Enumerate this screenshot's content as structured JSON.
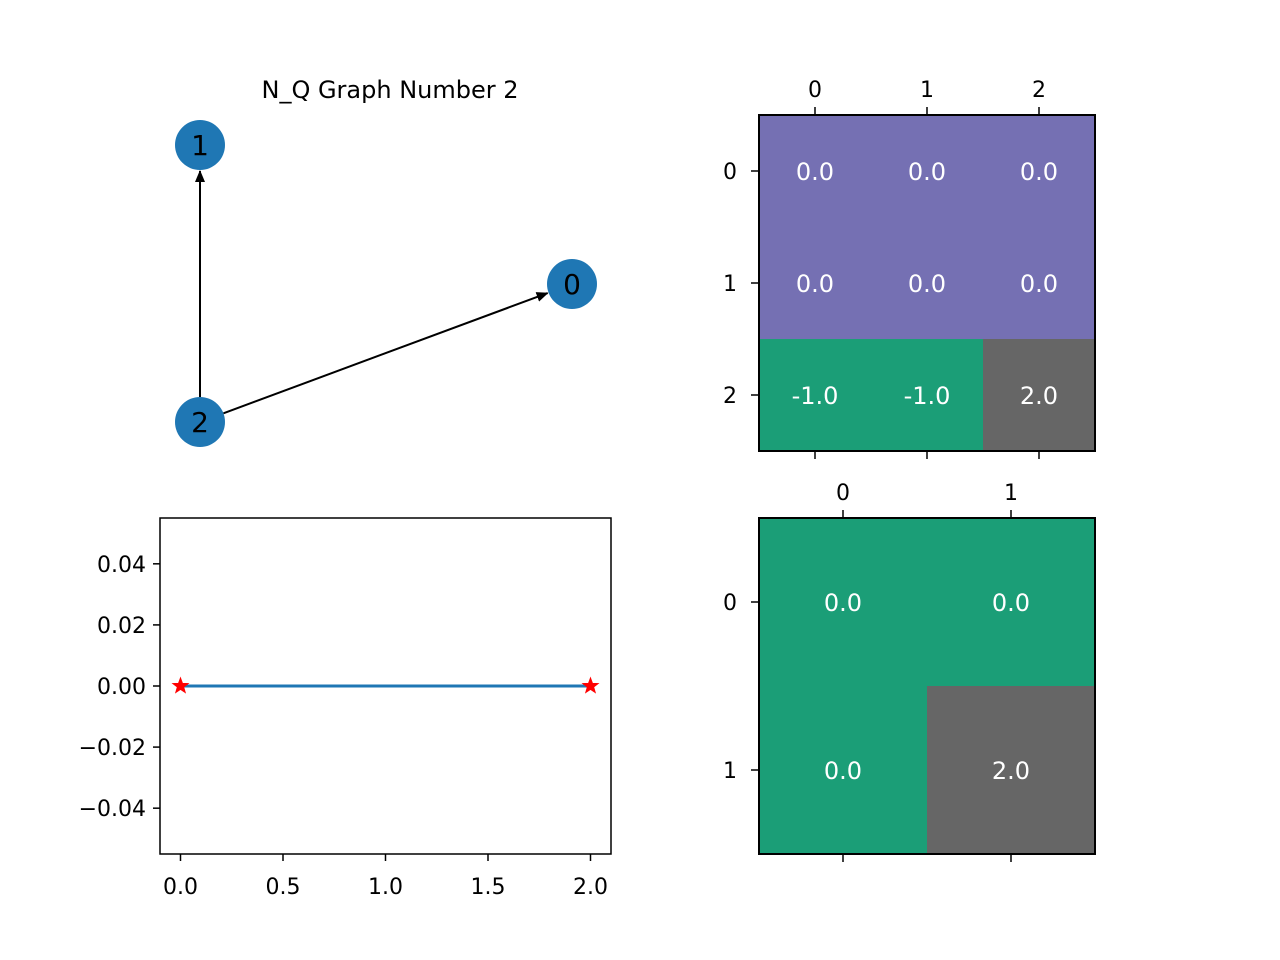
{
  "chart_data": [
    {
      "type": "graph",
      "title": "N_Q Graph Number 2",
      "nodes": [
        {
          "id": "0",
          "label": "0"
        },
        {
          "id": "1",
          "label": "1"
        },
        {
          "id": "2",
          "label": "2"
        }
      ],
      "edges": [
        {
          "from": "2",
          "to": "1"
        },
        {
          "from": "2",
          "to": "0"
        }
      ],
      "colors": {
        "node": "#1f77b4",
        "edge": "#000000"
      }
    },
    {
      "type": "heatmap",
      "x_ticks": [
        "0",
        "1",
        "2"
      ],
      "y_ticks": [
        "0",
        "1",
        "2"
      ],
      "values": [
        [
          0.0,
          0.0,
          0.0
        ],
        [
          0.0,
          0.0,
          0.0
        ],
        [
          -1.0,
          -1.0,
          2.0
        ]
      ],
      "cell_labels": [
        [
          "0.0",
          "0.0",
          "0.0"
        ],
        [
          "0.0",
          "0.0",
          "0.0"
        ],
        [
          "-1.0",
          "-1.0",
          "2.0"
        ]
      ],
      "cell_colors": [
        [
          "#7570b3",
          "#7570b3",
          "#7570b3"
        ],
        [
          "#7570b3",
          "#7570b3",
          "#7570b3"
        ],
        [
          "#1b9e77",
          "#1b9e77",
          "#666666"
        ]
      ],
      "x_tick_position": "top"
    },
    {
      "type": "line",
      "series": [
        {
          "x": [
            0.0,
            2.0
          ],
          "y": [
            0.0,
            0.0
          ],
          "color": "#1f77b4",
          "marker": "red-star"
        }
      ],
      "x_ticks": [
        "0.0",
        "0.5",
        "1.0",
        "1.5",
        "2.0"
      ],
      "y_ticks": [
        "0.04",
        "0.02",
        "0.00",
        "−0.02",
        "−0.04"
      ],
      "xlim": [
        -0.1,
        2.1
      ],
      "ylim": [
        -0.055,
        0.055
      ]
    },
    {
      "type": "heatmap",
      "x_ticks": [
        "0",
        "1"
      ],
      "y_ticks": [
        "0",
        "1"
      ],
      "values": [
        [
          0.0,
          0.0
        ],
        [
          0.0,
          2.0
        ]
      ],
      "cell_labels": [
        [
          "0.0",
          "0.0"
        ],
        [
          "0.0",
          "2.0"
        ]
      ],
      "cell_colors": [
        [
          "#1b9e77",
          "#1b9e77"
        ],
        [
          "#1b9e77",
          "#666666"
        ]
      ],
      "x_tick_position": "top"
    }
  ]
}
